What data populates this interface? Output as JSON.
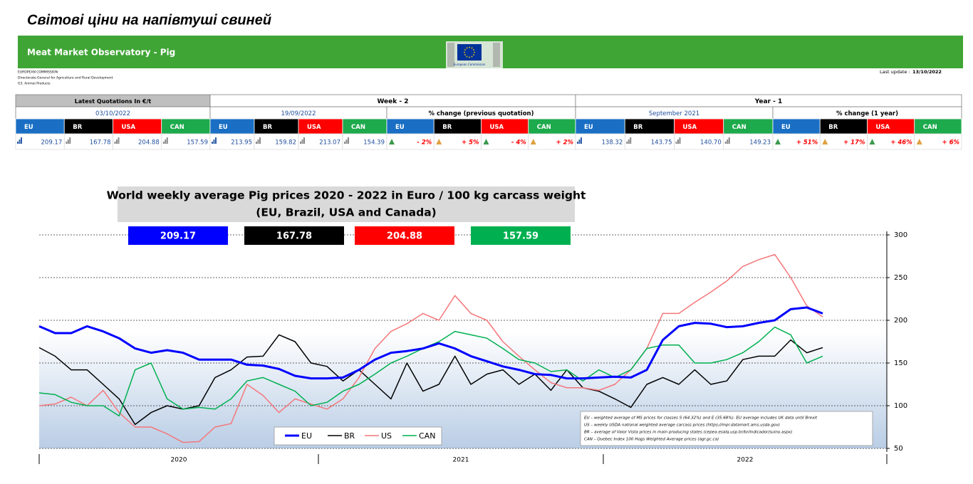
{
  "page_title": "Світові ціни на напівтуші свиней",
  "header": {
    "title": "Meat Market Observatory - Pig",
    "logo_text": "European Commission",
    "org_lines": [
      "EUROPEAN COMMISSION",
      "Directorate-General for Agriculture and Rural Development",
      "G3. Animal Products"
    ],
    "last_update_label": "Last update :",
    "last_update": "13/10/2022"
  },
  "table": {
    "column_colors": [
      "#1a6fc4",
      "#000000",
      "#ff0000",
      "#1daa4c"
    ],
    "groups": [
      {
        "title": "Latest Quotations In €/t",
        "subgroups": [
          {
            "title": "03/10/2022",
            "columns": [
              "EU",
              "BR",
              "USA",
              "CAN"
            ],
            "values": [
              "209.17",
              "167.78",
              "204.88",
              "157.59"
            ]
          }
        ]
      },
      {
        "title": "Week - 2",
        "subgroups": [
          {
            "title": "19/09/2022",
            "columns": [
              "EU",
              "BR",
              "USA",
              "CAN"
            ],
            "values": [
              "213.95",
              "159.82",
              "213.07",
              "154.39"
            ]
          },
          {
            "title": "% change (previous quotation)",
            "columns": [
              "EU",
              "BR",
              "USA",
              "CAN"
            ],
            "values": [
              "- 2%",
              "+ 5%",
              "- 4%",
              "+ 2%"
            ]
          }
        ]
      },
      {
        "title": "Year - 1",
        "subgroups": [
          {
            "title": "September 2021",
            "columns": [
              "EU",
              "BR",
              "USA",
              "CAN"
            ],
            "values": [
              "138.32",
              "143.75",
              "140.70",
              "149.23"
            ]
          },
          {
            "title": "% change (1 year)",
            "columns": [
              "EU",
              "BR",
              "USA",
              "CAN"
            ],
            "values": [
              "+ 51%",
              "+ 17%",
              "+ 46%",
              "+ 6%"
            ]
          }
        ]
      }
    ]
  },
  "chart_data": {
    "type": "line",
    "title": "World weekly average Pig prices 2020 - 2022  in Euro / 100 kg carcass weight",
    "subtitle": "(EU, Brazil, USA and Canada)",
    "latest_values": [
      209.17,
      167.78,
      204.88,
      157.59
    ],
    "box_colors": [
      "#0000ff",
      "#000000",
      "#ff0000",
      "#00b050"
    ],
    "x_labels": [
      "2020",
      "2021",
      "2022"
    ],
    "ylim": [
      50,
      300
    ],
    "yticks": [
      50,
      100,
      150,
      200,
      250,
      300
    ],
    "grid": true,
    "series": [
      {
        "name": "EU",
        "color": "#0000ff",
        "values": [
          193,
          185,
          185,
          193,
          187,
          179,
          167,
          162,
          165,
          162,
          154,
          154,
          154,
          148,
          147,
          143,
          135,
          132,
          132,
          133,
          142,
          154,
          162,
          164,
          167,
          173,
          167,
          158,
          152,
          146,
          142,
          137,
          136,
          132,
          132,
          133,
          134,
          133,
          142,
          177,
          193,
          197,
          196,
          192,
          193,
          197,
          200,
          213,
          215,
          208
        ]
      },
      {
        "name": "BR",
        "color": "#000000",
        "values": [
          168,
          158,
          142,
          142,
          125,
          108,
          78,
          92,
          100,
          96,
          100,
          133,
          142,
          157,
          158,
          183,
          175,
          150,
          146,
          129,
          142,
          125,
          108,
          150,
          117,
          125,
          158,
          125,
          137,
          142,
          125,
          137,
          118,
          142,
          121,
          117,
          108,
          98,
          125,
          133,
          125,
          142,
          125,
          129,
          154,
          158,
          158,
          177,
          162,
          168
        ]
      },
      {
        "name": "US",
        "color": "#f4777a",
        "values": [
          100,
          102,
          110,
          100,
          118,
          92,
          75,
          75,
          67,
          57,
          58,
          75,
          79,
          125,
          112,
          92,
          108,
          102,
          96,
          108,
          133,
          167,
          187,
          196,
          208,
          200,
          229,
          208,
          200,
          175,
          158,
          142,
          127,
          121,
          121,
          118,
          125,
          142,
          167,
          208,
          208,
          221,
          233,
          246,
          263,
          271,
          277,
          250,
          217,
          204
        ]
      },
      {
        "name": "CAN",
        "color": "#00b050",
        "values": [
          115,
          113,
          104,
          100,
          100,
          88,
          142,
          150,
          108,
          96,
          98,
          96,
          108,
          129,
          133,
          125,
          117,
          100,
          104,
          117,
          125,
          137,
          150,
          158,
          167,
          175,
          187,
          183,
          179,
          167,
          154,
          150,
          140,
          142,
          129,
          142,
          133,
          142,
          167,
          171,
          171,
          150,
          150,
          154,
          162,
          175,
          192,
          183,
          150,
          158
        ]
      }
    ],
    "notes": [
      "EU    – weighted average of MS prices for classes S (64.32%) and E (35.68%). EU average includes UK data  until Brexit",
      "US    – weekly USDA national weighted average carcass prices (https://mpr.datamart.ams.usda.gov)",
      "BR    – average of Valor Vista prices in main producing states (cepea.esalq.usp.br/br/indicador/suino.aspx)",
      "CAN – Quebec Index 100 Hogs Weighted Average prices (agr.gc.ca)"
    ]
  }
}
